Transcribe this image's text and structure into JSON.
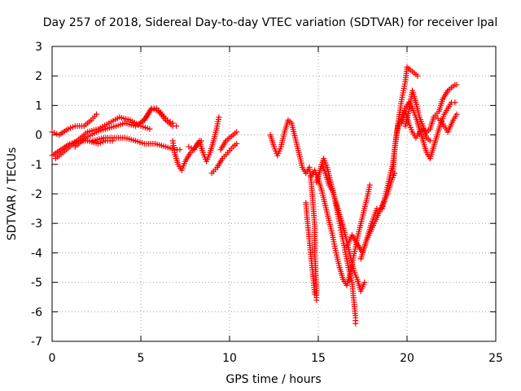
{
  "chart_data": {
    "type": "scatter",
    "title": "Day 257 of 2018, Sidereal Day-to-day VTEC variation (SDTVAR) for receiver lpal",
    "xlabel": "GPS time / hours",
    "ylabel": "SDTVAR / TECUs",
    "xlim": [
      0,
      25
    ],
    "ylim": [
      -7,
      3
    ],
    "xticks": [
      0,
      5,
      10,
      15,
      20,
      25
    ],
    "yticks": [
      3,
      2,
      1,
      0,
      -1,
      -2,
      -3,
      -4,
      -5,
      -6,
      -7
    ],
    "grid": true,
    "marker": "plus",
    "color": "#ff0000",
    "series": [
      {
        "values": [
          [
            0.0,
            0.1
          ],
          [
            0.4,
            0.0
          ],
          [
            0.9,
            0.2
          ],
          [
            1.3,
            0.3
          ],
          [
            1.8,
            0.3
          ],
          [
            2.2,
            0.5
          ],
          [
            2.5,
            0.7
          ]
        ]
      },
      {
        "values": [
          [
            0.0,
            -0.7
          ],
          [
            0.5,
            -0.5
          ],
          [
            1.0,
            -0.3
          ],
          [
            1.5,
            -0.2
          ],
          [
            2.0,
            -0.2
          ],
          [
            2.6,
            -0.3
          ],
          [
            3.0,
            -0.2
          ],
          [
            3.4,
            -0.2
          ]
        ]
      },
      {
        "values": [
          [
            0.2,
            -0.8
          ],
          [
            0.8,
            -0.5
          ],
          [
            1.4,
            -0.2
          ],
          [
            2.0,
            0.1
          ],
          [
            2.6,
            0.2
          ],
          [
            3.2,
            0.4
          ],
          [
            3.8,
            0.6
          ],
          [
            4.4,
            0.5
          ],
          [
            5.0,
            0.3
          ],
          [
            5.5,
            0.2
          ]
        ]
      },
      {
        "values": [
          [
            1.3,
            -0.4
          ],
          [
            1.9,
            -0.1
          ],
          [
            2.5,
            0.1
          ],
          [
            3.0,
            0.2
          ],
          [
            3.6,
            0.3
          ],
          [
            4.1,
            0.4
          ],
          [
            4.7,
            0.3
          ],
          [
            5.2,
            0.5
          ],
          [
            5.6,
            0.9
          ],
          [
            6.0,
            0.8
          ],
          [
            6.4,
            0.5
          ],
          [
            6.8,
            0.3
          ],
          [
            7.0,
            0.3
          ]
        ]
      },
      {
        "values": [
          [
            2.3,
            -0.2
          ],
          [
            2.9,
            -0.1
          ],
          [
            3.5,
            -0.1
          ],
          [
            4.1,
            -0.1
          ],
          [
            4.7,
            -0.2
          ],
          [
            5.2,
            -0.3
          ],
          [
            5.8,
            -0.3
          ],
          [
            6.4,
            -0.4
          ],
          [
            6.9,
            -0.5
          ],
          [
            7.2,
            -0.5
          ]
        ]
      },
      {
        "values": [
          [
            6.8,
            0.4
          ],
          [
            6.5,
            0.5
          ],
          [
            6.2,
            0.7
          ],
          [
            5.9,
            0.9
          ],
          [
            5.6,
            0.9
          ],
          [
            5.3,
            0.6
          ],
          [
            5.0,
            0.4
          ]
        ]
      },
      {
        "values": [
          [
            6.8,
            -0.2
          ],
          [
            6.9,
            -0.6
          ],
          [
            7.1,
            -1.0
          ],
          [
            7.3,
            -1.2
          ],
          [
            7.5,
            -0.9
          ],
          [
            7.8,
            -0.6
          ],
          [
            8.1,
            -0.4
          ],
          [
            8.3,
            -0.2
          ],
          [
            8.5,
            -0.6
          ],
          [
            8.7,
            -0.9
          ],
          [
            8.9,
            -0.6
          ],
          [
            9.1,
            -0.2
          ],
          [
            9.3,
            0.3
          ],
          [
            9.4,
            0.6
          ]
        ]
      },
      {
        "values": [
          [
            7.7,
            -0.4
          ],
          [
            8.0,
            -0.5
          ],
          [
            8.2,
            -0.3
          ],
          [
            8.4,
            -0.2
          ]
        ]
      },
      {
        "values": [
          [
            9.0,
            -1.3
          ],
          [
            9.3,
            -1.1
          ],
          [
            9.6,
            -0.8
          ],
          [
            9.9,
            -0.6
          ],
          [
            10.2,
            -0.4
          ],
          [
            10.4,
            -0.3
          ]
        ]
      },
      {
        "values": [
          [
            9.5,
            -0.5
          ],
          [
            9.8,
            -0.2
          ],
          [
            10.0,
            -0.1
          ],
          [
            10.2,
            0.0
          ],
          [
            10.4,
            0.1
          ]
        ]
      },
      {
        "values": [
          [
            12.3,
            0.0
          ],
          [
            12.5,
            -0.4
          ],
          [
            12.7,
            -0.7
          ],
          [
            12.9,
            -0.4
          ],
          [
            13.1,
            0.1
          ],
          [
            13.3,
            0.5
          ],
          [
            13.5,
            0.4
          ],
          [
            13.7,
            -0.1
          ],
          [
            13.9,
            -0.6
          ],
          [
            14.1,
            -1.1
          ],
          [
            14.3,
            -1.3
          ],
          [
            14.5,
            -1.1
          ],
          [
            14.6,
            -1.6
          ],
          [
            14.7,
            -2.3
          ],
          [
            14.8,
            -3.1
          ],
          [
            14.8,
            -4.0
          ],
          [
            14.9,
            -5.2
          ],
          [
            14.9,
            -5.6
          ]
        ]
      },
      {
        "values": [
          [
            14.3,
            -2.3
          ],
          [
            14.4,
            -3.0
          ],
          [
            14.5,
            -3.6
          ],
          [
            14.6,
            -4.2
          ],
          [
            14.7,
            -4.8
          ],
          [
            14.8,
            -5.4
          ]
        ]
      },
      {
        "values": [
          [
            14.6,
            -1.4
          ],
          [
            14.8,
            -1.2
          ],
          [
            15.0,
            -1.5
          ],
          [
            15.2,
            -1.9
          ],
          [
            15.4,
            -2.4
          ],
          [
            15.6,
            -2.9
          ],
          [
            15.8,
            -3.4
          ],
          [
            16.0,
            -4.0
          ],
          [
            16.2,
            -4.5
          ],
          [
            16.4,
            -4.9
          ],
          [
            16.6,
            -5.1
          ],
          [
            16.8,
            -4.7
          ],
          [
            17.0,
            -4.1
          ],
          [
            17.2,
            -3.5
          ],
          [
            17.4,
            -3.0
          ],
          [
            17.6,
            -2.5
          ],
          [
            17.8,
            -2.0
          ],
          [
            17.9,
            -1.7
          ]
        ]
      },
      {
        "values": [
          [
            14.9,
            -1.6
          ],
          [
            15.1,
            -1.2
          ],
          [
            15.3,
            -0.8
          ],
          [
            15.5,
            -1.1
          ],
          [
            15.7,
            -1.6
          ],
          [
            15.9,
            -2.1
          ],
          [
            16.1,
            -2.7
          ],
          [
            16.3,
            -3.3
          ],
          [
            16.5,
            -3.9
          ],
          [
            16.7,
            -4.5
          ],
          [
            16.9,
            -5.0
          ],
          [
            17.0,
            -5.6
          ],
          [
            17.1,
            -6.2
          ],
          [
            17.1,
            -6.4
          ]
        ]
      },
      {
        "values": [
          [
            15.2,
            -1.0
          ],
          [
            15.4,
            -1.3
          ],
          [
            15.6,
            -1.7
          ],
          [
            15.8,
            -1.9
          ],
          [
            16.0,
            -2.3
          ],
          [
            16.2,
            -2.7
          ],
          [
            16.4,
            -3.1
          ],
          [
            16.6,
            -3.6
          ],
          [
            16.8,
            -4.1
          ],
          [
            17.0,
            -4.6
          ],
          [
            17.2,
            -4.9
          ],
          [
            17.4,
            -5.3
          ],
          [
            17.6,
            -5.0
          ]
        ]
      },
      {
        "values": [
          [
            16.6,
            -3.8
          ],
          [
            16.9,
            -3.4
          ],
          [
            17.2,
            -3.7
          ],
          [
            17.5,
            -4.0
          ],
          [
            17.8,
            -3.4
          ],
          [
            18.0,
            -3.0
          ],
          [
            18.3,
            -2.5
          ]
        ]
      },
      {
        "values": [
          [
            17.4,
            -4.2
          ],
          [
            17.7,
            -3.6
          ],
          [
            18.0,
            -3.2
          ],
          [
            18.3,
            -2.8
          ],
          [
            18.6,
            -2.4
          ],
          [
            18.9,
            -2.0
          ],
          [
            19.1,
            -1.6
          ],
          [
            19.3,
            -1.3
          ]
        ]
      },
      {
        "values": [
          [
            18.6,
            -2.5
          ],
          [
            18.8,
            -2.0
          ],
          [
            19.0,
            -1.5
          ],
          [
            19.2,
            -1.0
          ],
          [
            19.3,
            -0.5
          ],
          [
            19.4,
            0.0
          ],
          [
            19.5,
            0.3
          ],
          [
            19.7,
            0.6
          ],
          [
            19.9,
            0.9
          ],
          [
            20.1,
            1.1
          ],
          [
            20.3,
            0.9
          ],
          [
            20.5,
            0.6
          ],
          [
            20.7,
            0.2
          ],
          [
            20.9,
            -0.2
          ],
          [
            21.1,
            -0.6
          ],
          [
            21.3,
            -0.8
          ],
          [
            21.5,
            -0.4
          ],
          [
            21.7,
            0.0
          ],
          [
            21.9,
            0.4
          ],
          [
            22.1,
            0.7
          ],
          [
            22.3,
            0.9
          ],
          [
            22.5,
            1.1
          ],
          [
            22.7,
            1.1
          ]
        ]
      },
      {
        "values": [
          [
            19.2,
            -1.3
          ],
          [
            19.3,
            -0.5
          ],
          [
            19.5,
            0.4
          ],
          [
            19.7,
            1.2
          ],
          [
            19.9,
            1.8
          ],
          [
            20.0,
            2.3
          ],
          [
            20.2,
            2.2
          ],
          [
            20.4,
            2.1
          ],
          [
            20.6,
            2.0
          ]
        ]
      },
      {
        "values": [
          [
            19.9,
            0.3
          ],
          [
            20.1,
            0.8
          ],
          [
            20.3,
            1.5
          ],
          [
            20.5,
            1.1
          ],
          [
            20.7,
            0.6
          ],
          [
            20.9,
            0.3
          ],
          [
            21.1,
            -0.1
          ],
          [
            21.3,
            -0.2
          ]
        ]
      },
      {
        "values": [
          [
            19.7,
            0.4
          ],
          [
            19.9,
            0.8
          ],
          [
            20.1,
            0.4
          ],
          [
            20.3,
            0.1
          ],
          [
            20.5,
            -0.1
          ],
          [
            20.7,
            0.1
          ],
          [
            20.9,
            0.2
          ],
          [
            21.1,
            0.1
          ],
          [
            21.3,
            0.2
          ],
          [
            21.5,
            0.6
          ],
          [
            21.8,
            0.8
          ],
          [
            22.0,
            1.2
          ],
          [
            22.3,
            1.5
          ],
          [
            22.5,
            1.6
          ],
          [
            22.7,
            1.7
          ],
          [
            22.8,
            1.7
          ]
        ]
      },
      {
        "values": [
          [
            21.6,
            0.6
          ],
          [
            21.9,
            0.5
          ],
          [
            22.1,
            0.3
          ],
          [
            22.3,
            0.1
          ],
          [
            22.6,
            0.5
          ],
          [
            22.8,
            0.7
          ]
        ]
      }
    ]
  }
}
